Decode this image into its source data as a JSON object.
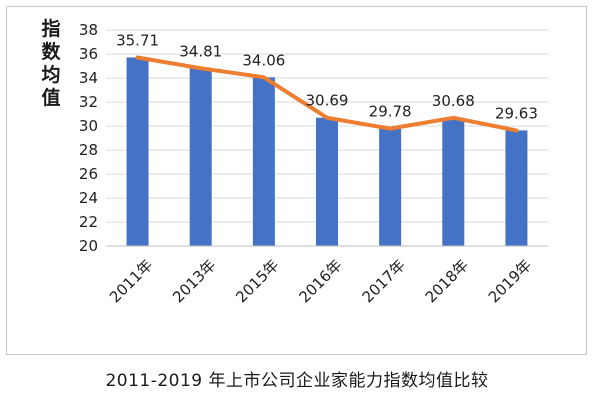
{
  "chart_data": {
    "type": "bar",
    "title": "",
    "xlabel": "",
    "ylabel": "指数均值",
    "categories": [
      "2011年",
      "2013年",
      "2015年",
      "2016年",
      "2017年",
      "2018年",
      "2019年"
    ],
    "values": [
      35.71,
      34.81,
      34.06,
      30.69,
      29.78,
      30.68,
      29.63
    ],
    "data_labels": [
      "35.71",
      "34.81",
      "34.06",
      "30.69",
      "29.78",
      "30.68",
      "29.63"
    ],
    "overlay_line": true,
    "ylim": [
      20,
      38
    ],
    "yticks": [
      "20",
      "22",
      "24",
      "26",
      "28",
      "30",
      "32",
      "34",
      "36",
      "38"
    ],
    "grid": true,
    "legend": "none",
    "colors": {
      "bar": "#4472c4",
      "line": "#ed7d31",
      "grid": "#d9d9d9"
    }
  },
  "caption": "2011-2019 年上市公司企业家能力指数均值比较"
}
